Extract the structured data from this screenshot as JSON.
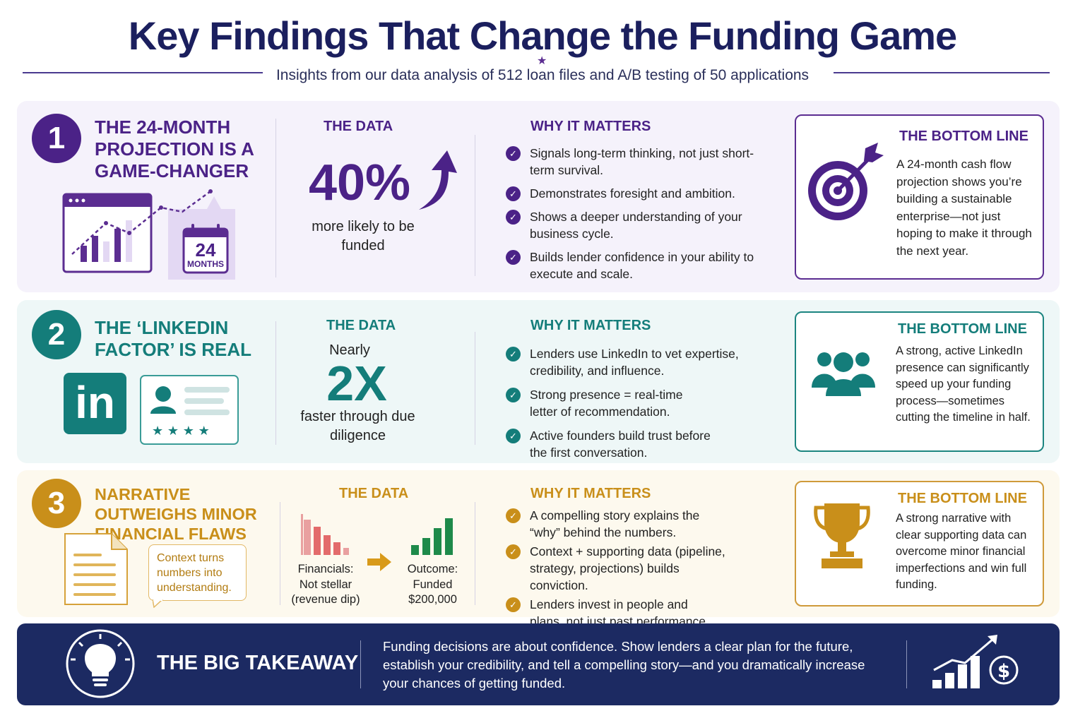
{
  "header": {
    "title": "Key Findings That Change the Funding Game",
    "subtitle": "Insights from our data analysis of 512 loan files and A/B testing of 50 applications"
  },
  "colors": {
    "purple": "#5b2d91",
    "teal": "#147d7a",
    "gold": "#c98f1a",
    "navy": "#1c2a62"
  },
  "findings": [
    {
      "number": "1",
      "title": "The 24-Month Projection Is a Game-Changer",
      "data_label": "The Data",
      "stat": "40%",
      "stat_caption": "more likely to be funded",
      "calendar_number": "24",
      "calendar_label": "MONTHS",
      "why_label": "Why It Matters",
      "reasons": [
        "Signals long-term thinking, not just short-term survival.",
        "Demonstrates foresight and ambition.",
        "Shows a deeper understanding of your business cycle.",
        "Builds lender confidence in your ability to execute and scale."
      ],
      "bottom_label": "The Bottom Line",
      "bottom_text": "A 24-month cash flow projection shows you’re building a sustainable enterprise—not just hoping to make it through the next year.",
      "icons": [
        "chart-window-icon",
        "calendar-icon",
        "up-arrow-icon",
        "target-icon"
      ]
    },
    {
      "number": "2",
      "title": "The ‘LinkedIn Factor’ Is Real",
      "data_label": "The Data",
      "stat_prefix": "Nearly",
      "stat": "2X",
      "stat_caption": "faster through due diligence",
      "logo_text": "in",
      "why_label": "Why It Matters",
      "reasons": [
        "Lenders use LinkedIn to vet expertise, credibility, and influence.",
        "Strong presence = real-time letter of recommendation.",
        "Active founders build trust before the first conversation."
      ],
      "bottom_label": "The Bottom Line",
      "bottom_text": "A strong, active LinkedIn presence can significantly speed up your funding process—sometimes cutting the timeline in half.",
      "icons": [
        "linkedin-icon",
        "profile-card-icon",
        "people-icon"
      ]
    },
    {
      "number": "3",
      "title": "Narrative Outweighs Minor Financial Flaws",
      "data_label": "The Data",
      "note": "Context turns numbers into understanding.",
      "financials_caption": "Financials: Not stellar (revenue dip)",
      "outcome_caption": "Outcome: Funded $200,000",
      "why_label": "Why It Matters",
      "reasons": [
        "A compelling story explains the “why” behind the numbers.",
        "Context + supporting data (pipeline, strategy, projections) builds conviction.",
        "Lenders invest in people and plans, not just past performance."
      ],
      "bottom_label": "The Bottom Line",
      "bottom_text": "A strong narrative with clear supporting data can overcome minor financial imperfections and win full funding.",
      "icons": [
        "document-icon",
        "declining-bars-icon",
        "arrow-right-icon",
        "rising-bars-icon",
        "trophy-icon"
      ]
    }
  ],
  "takeaway": {
    "label": "The Big Takeaway",
    "text": "Funding decisions are about confidence. Show lenders a clear plan for the future, establish your credibility, and tell a compelling story—and you dramatically increase your chances of getting funded.",
    "icons": [
      "lightbulb-icon",
      "growth-dollar-icon"
    ]
  }
}
